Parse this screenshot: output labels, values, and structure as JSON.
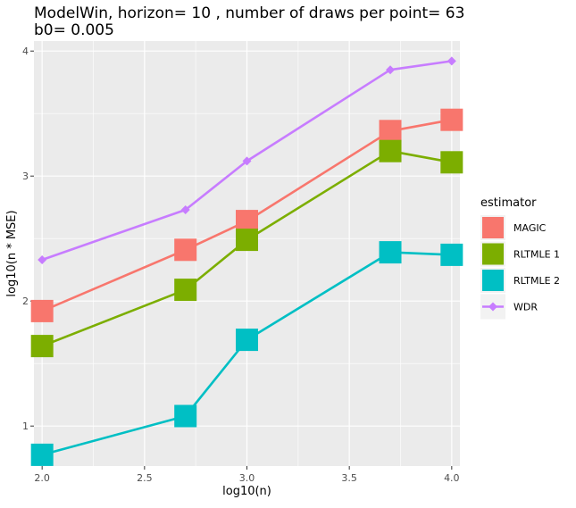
{
  "chart_data": {
    "type": "line",
    "title": "ModelWin, horizon= 10 , number of draws per point= 63",
    "subtitle": "b0= 0.005",
    "xlabel": "log10(n)",
    "ylabel": "log10(n * MSE)",
    "xlim": [
      1.96,
      4.04
    ],
    "ylim": [
      0.68,
      4.08
    ],
    "x_ticks": [
      {
        "value": 2.0,
        "label": "2.0"
      },
      {
        "value": 2.5,
        "label": "2.5"
      },
      {
        "value": 3.0,
        "label": "3.0"
      },
      {
        "value": 3.5,
        "label": "3.5"
      },
      {
        "value": 4.0,
        "label": "4.0"
      }
    ],
    "y_ticks": [
      {
        "value": 1,
        "label": "1"
      },
      {
        "value": 2,
        "label": "2"
      },
      {
        "value": 3,
        "label": "3"
      },
      {
        "value": 4,
        "label": "4"
      }
    ],
    "grid": true,
    "legend_title": "estimator",
    "legend_position": "right",
    "x": [
      2.0,
      2.7,
      3.0,
      3.7,
      4.0
    ],
    "series": [
      {
        "name": "MAGIC",
        "color": "#F8766D",
        "marker": "square",
        "values": [
          1.92,
          2.41,
          2.64,
          3.36,
          3.45
        ]
      },
      {
        "name": "RLTMLE 1",
        "color": "#7CAE00",
        "marker": "square",
        "values": [
          1.64,
          2.09,
          2.49,
          3.2,
          3.11
        ]
      },
      {
        "name": "RLTMLE 2",
        "color": "#00BFC4",
        "marker": "square",
        "values": [
          0.77,
          1.08,
          1.69,
          2.39,
          2.37
        ]
      },
      {
        "name": "WDR",
        "color": "#C77CFF",
        "marker": "diamond",
        "values": [
          2.33,
          2.73,
          3.12,
          3.85,
          3.92
        ]
      }
    ]
  }
}
